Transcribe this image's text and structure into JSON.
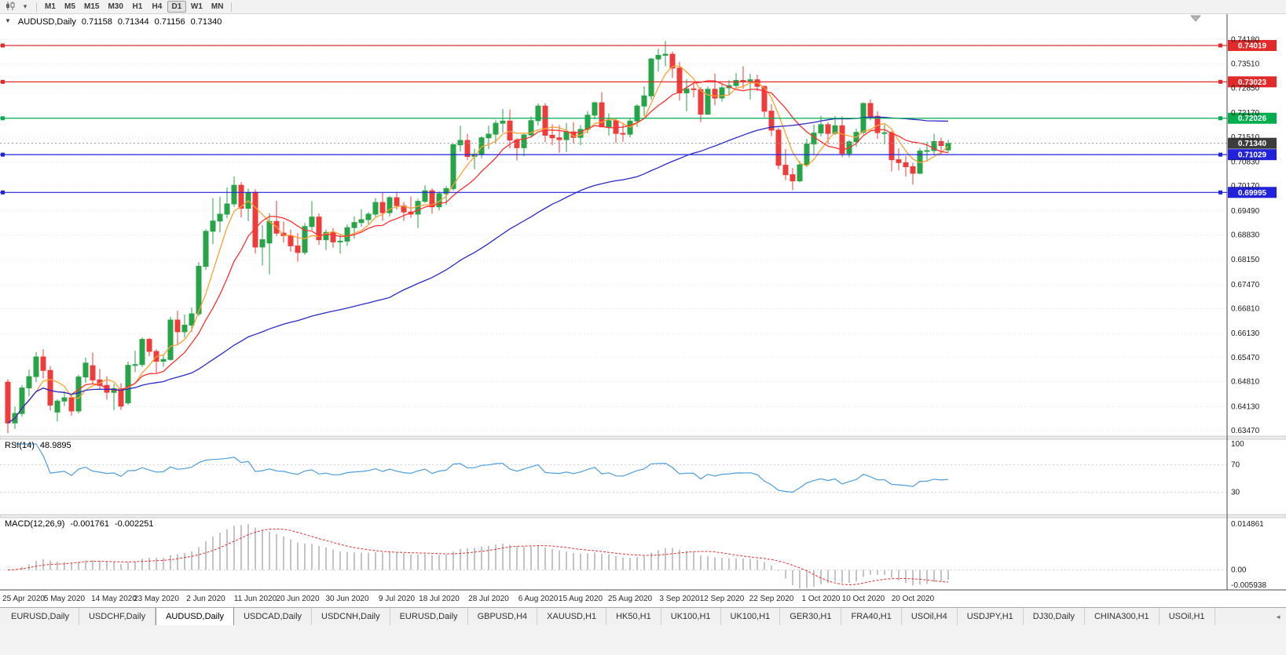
{
  "toolbar": {
    "timeframes": [
      "M1",
      "M5",
      "M15",
      "M30",
      "H1",
      "H4",
      "D1",
      "W1",
      "MN"
    ],
    "active_timeframe": "D1"
  },
  "chart_header": {
    "collapse_icon": "▼",
    "title": "AUDUSD,Daily",
    "open": "0.71158",
    "high": "0.71344",
    "low": "0.71156",
    "close": "0.71340"
  },
  "indicators": {
    "rsi_label": "RSI(14)",
    "rsi_value": "48.9895",
    "macd_label": "MACD(12,26,9)",
    "macd_value1": "-0.001761",
    "macd_value2": "-0.002251"
  },
  "axes": {
    "price_ticks": [
      "0.74180",
      "0.73510",
      "0.72850",
      "0.72170",
      "0.71510",
      "0.70830",
      "0.70170",
      "0.69490",
      "0.68830",
      "0.68150",
      "0.67470",
      "0.66810",
      "0.66130",
      "0.65470",
      "0.64810",
      "0.64130",
      "0.63470"
    ],
    "rsi_ticks": [
      {
        "v": 100,
        "t": "100"
      },
      {
        "v": 70,
        "t": "70"
      },
      {
        "v": 30,
        "t": "30"
      }
    ],
    "macd_ticks": [
      {
        "v": 0.014861,
        "t": "0.014861"
      },
      {
        "v": 0,
        "t": "0.00"
      },
      {
        "v": -0.005938,
        "t": "-0.005938"
      }
    ],
    "date_labels": [
      {
        "i": 1,
        "t": "25 Apr 2020"
      },
      {
        "i": 8,
        "t": "5 May 2020"
      },
      {
        "i": 15,
        "t": "14 May 2020"
      },
      {
        "i": 21,
        "t": "23 May 2020"
      },
      {
        "i": 28,
        "t": "2 Jun 2020"
      },
      {
        "i": 35,
        "t": "11 Jun 2020"
      },
      {
        "i": 41,
        "t": "20 Jun 2020"
      },
      {
        "i": 48,
        "t": "30 Jun 2020"
      },
      {
        "i": 55,
        "t": "9 Jul 2020"
      },
      {
        "i": 61,
        "t": "18 Jul 2020"
      },
      {
        "i": 68,
        "t": "28 Jul 2020"
      },
      {
        "i": 75,
        "t": "6 Aug 2020"
      },
      {
        "i": 81,
        "t": "15 Aug 2020"
      },
      {
        "i": 88,
        "t": "25 Aug 2020"
      },
      {
        "i": 95,
        "t": "3 Sep 2020"
      },
      {
        "i": 101,
        "t": "12 Sep 2020"
      },
      {
        "i": 108,
        "t": "22 Sep 2020"
      },
      {
        "i": 115,
        "t": "1 Oct 2020"
      },
      {
        "i": 121,
        "t": "10 Oct 2020"
      },
      {
        "i": 128,
        "t": "20 Oct 2020"
      }
    ]
  },
  "levels": {
    "hlines": [
      {
        "price": 0.74019,
        "label": "0.74019",
        "color": "#e22a2a"
      },
      {
        "price": 0.73023,
        "label": "0.73023",
        "color": "#e22a2a"
      },
      {
        "price": 0.72026,
        "label": "0.72026",
        "color": "#00ae4d"
      },
      {
        "price": 0.71029,
        "label": "0.71029",
        "color": "#2222dd"
      },
      {
        "price": 0.69995,
        "label": "0.69995",
        "color": "#2222dd"
      }
    ],
    "current_price": {
      "price": 0.7134,
      "label": "0.71340",
      "color": "#3c3c3c"
    }
  },
  "colors": {
    "up": "#27a348",
    "down": "#ee3b3b",
    "ma_fast": "#ffa033",
    "ma_mid": "#ff3030",
    "ma_slow": "#2a2ac8",
    "rsi": "#4f9ede",
    "macd_hist": "#c4c4c4",
    "macd_signal": "#e03030",
    "grid": "#e7e7e7",
    "level_grid": "#cfcfcf"
  },
  "chart_data": {
    "type": "candlestick",
    "symbol": "AUDUSD",
    "timeframe": "Daily",
    "ylim": [
      0.6332,
      0.7462
    ],
    "overlays": [
      {
        "name": "ma-fast-line",
        "period": 5,
        "color_key": "ma_fast"
      },
      {
        "name": "ma-mid-line",
        "period": 10,
        "color_key": "ma_mid"
      },
      {
        "name": "ma-slow-line",
        "period": 55,
        "color_key": "ma_slow"
      }
    ],
    "ohlc": [
      [
        0.648,
        0.6488,
        0.634,
        0.6368
      ],
      [
        0.6368,
        0.6413,
        0.6352,
        0.6394
      ],
      [
        0.6394,
        0.6472,
        0.6385,
        0.6464
      ],
      [
        0.6464,
        0.6514,
        0.6441,
        0.6495
      ],
      [
        0.6495,
        0.6562,
        0.648,
        0.6549
      ],
      [
        0.6549,
        0.657,
        0.649,
        0.6512
      ],
      [
        0.6512,
        0.6524,
        0.6402,
        0.6417
      ],
      [
        0.6398,
        0.6433,
        0.6372,
        0.6428
      ],
      [
        0.6428,
        0.6454,
        0.6414,
        0.6437
      ],
      [
        0.6437,
        0.6448,
        0.6388,
        0.6401
      ],
      [
        0.6401,
        0.65,
        0.6394,
        0.6494
      ],
      [
        0.6494,
        0.6547,
        0.6478,
        0.6532
      ],
      [
        0.6525,
        0.6561,
        0.6475,
        0.6486
      ],
      [
        0.6486,
        0.6516,
        0.6459,
        0.6471
      ],
      [
        0.6471,
        0.6496,
        0.6432,
        0.6452
      ],
      [
        0.6452,
        0.6475,
        0.6403,
        0.6462
      ],
      [
        0.6462,
        0.6477,
        0.6404,
        0.6414
      ],
      [
        0.6423,
        0.6536,
        0.6417,
        0.6526
      ],
      [
        0.6526,
        0.6566,
        0.6507,
        0.6528
      ],
      [
        0.6528,
        0.6602,
        0.6521,
        0.6597
      ],
      [
        0.6597,
        0.6601,
        0.6551,
        0.6564
      ],
      [
        0.6564,
        0.657,
        0.6506,
        0.6537
      ],
      [
        0.6537,
        0.6557,
        0.6522,
        0.6542
      ],
      [
        0.6542,
        0.6659,
        0.6539,
        0.665
      ],
      [
        0.665,
        0.6676,
        0.6583,
        0.6618
      ],
      [
        0.6618,
        0.6665,
        0.6602,
        0.6636
      ],
      [
        0.6636,
        0.6684,
        0.6618,
        0.6667
      ],
      [
        0.6667,
        0.6808,
        0.6661,
        0.6797
      ],
      [
        0.6797,
        0.6899,
        0.6787,
        0.6893
      ],
      [
        0.6893,
        0.6984,
        0.6858,
        0.6921
      ],
      [
        0.6921,
        0.6988,
        0.689,
        0.694
      ],
      [
        0.694,
        0.7013,
        0.6929,
        0.6968
      ],
      [
        0.6968,
        0.7043,
        0.696,
        0.7019
      ],
      [
        0.7019,
        0.7028,
        0.6931,
        0.6956
      ],
      [
        0.6956,
        0.701,
        0.6921,
        0.7
      ],
      [
        0.7,
        0.7008,
        0.6832,
        0.685
      ],
      [
        0.685,
        0.691,
        0.6799,
        0.687
      ],
      [
        0.6861,
        0.6943,
        0.6775,
        0.692
      ],
      [
        0.692,
        0.6977,
        0.688,
        0.6888
      ],
      [
        0.6888,
        0.692,
        0.6862,
        0.6881
      ],
      [
        0.6881,
        0.6898,
        0.6837,
        0.6853
      ],
      [
        0.6853,
        0.6888,
        0.681,
        0.6835
      ],
      [
        0.6835,
        0.6916,
        0.6829,
        0.6906
      ],
      [
        0.6906,
        0.6976,
        0.6896,
        0.6932
      ],
      [
        0.6932,
        0.6942,
        0.6856,
        0.687
      ],
      [
        0.687,
        0.6898,
        0.6842,
        0.689
      ],
      [
        0.689,
        0.6902,
        0.6848,
        0.6864
      ],
      [
        0.6864,
        0.6886,
        0.6832,
        0.6866
      ],
      [
        0.6866,
        0.6912,
        0.6853,
        0.6903
      ],
      [
        0.6903,
        0.6934,
        0.6873,
        0.6917
      ],
      [
        0.6917,
        0.6954,
        0.6905,
        0.6925
      ],
      [
        0.6925,
        0.6946,
        0.6912,
        0.694
      ],
      [
        0.694,
        0.6984,
        0.6931,
        0.6972
      ],
      [
        0.6972,
        0.6998,
        0.6922,
        0.6944
      ],
      [
        0.6944,
        0.699,
        0.6933,
        0.6985
      ],
      [
        0.6985,
        0.7001,
        0.6952,
        0.6963
      ],
      [
        0.6963,
        0.6973,
        0.6921,
        0.6946
      ],
      [
        0.6946,
        0.6988,
        0.693,
        0.694
      ],
      [
        0.694,
        0.6982,
        0.6902,
        0.6975
      ],
      [
        0.6975,
        0.7019,
        0.6971,
        0.7004
      ],
      [
        0.7004,
        0.7011,
        0.6941,
        0.696
      ],
      [
        0.696,
        0.7002,
        0.695,
        0.6996
      ],
      [
        0.6996,
        0.7017,
        0.6965,
        0.701
      ],
      [
        0.701,
        0.7133,
        0.7004,
        0.713
      ],
      [
        0.713,
        0.7182,
        0.7111,
        0.7142
      ],
      [
        0.7142,
        0.716,
        0.7088,
        0.7098
      ],
      [
        0.7098,
        0.7119,
        0.7063,
        0.7104
      ],
      [
        0.7104,
        0.7153,
        0.7093,
        0.7149
      ],
      [
        0.7149,
        0.7182,
        0.7118,
        0.7159
      ],
      [
        0.7159,
        0.7197,
        0.7135,
        0.7189
      ],
      [
        0.7189,
        0.7228,
        0.7163,
        0.7195
      ],
      [
        0.7195,
        0.7227,
        0.712,
        0.7143
      ],
      [
        0.7143,
        0.7149,
        0.7087,
        0.7122
      ],
      [
        0.7122,
        0.7162,
        0.7099,
        0.7157
      ],
      [
        0.7157,
        0.7208,
        0.7149,
        0.7196
      ],
      [
        0.7196,
        0.7243,
        0.7182,
        0.7236
      ],
      [
        0.7236,
        0.7244,
        0.7137,
        0.7156
      ],
      [
        0.7156,
        0.7186,
        0.7129,
        0.7149
      ],
      [
        0.7149,
        0.7184,
        0.7108,
        0.7144
      ],
      [
        0.7144,
        0.719,
        0.711,
        0.7165
      ],
      [
        0.7165,
        0.7192,
        0.7133,
        0.715
      ],
      [
        0.715,
        0.7184,
        0.7129,
        0.7172
      ],
      [
        0.7172,
        0.7222,
        0.7161,
        0.7211
      ],
      [
        0.7211,
        0.7248,
        0.72,
        0.7245
      ],
      [
        0.7245,
        0.7274,
        0.7177,
        0.7179
      ],
      [
        0.7179,
        0.7216,
        0.7155,
        0.7196
      ],
      [
        0.7196,
        0.7201,
        0.7135,
        0.7161
      ],
      [
        0.7161,
        0.7186,
        0.7138,
        0.7159
      ],
      [
        0.7159,
        0.7203,
        0.715,
        0.7195
      ],
      [
        0.7195,
        0.7241,
        0.7179,
        0.7236
      ],
      [
        0.7236,
        0.729,
        0.7209,
        0.7264
      ],
      [
        0.7264,
        0.7368,
        0.7253,
        0.7365
      ],
      [
        0.7365,
        0.7393,
        0.733,
        0.7375
      ],
      [
        0.7375,
        0.7414,
        0.7345,
        0.7378
      ],
      [
        0.7378,
        0.7385,
        0.7313,
        0.734
      ],
      [
        0.734,
        0.7357,
        0.7251,
        0.7272
      ],
      [
        0.7272,
        0.731,
        0.7222,
        0.7283
      ],
      [
        0.7283,
        0.7299,
        0.726,
        0.7281
      ],
      [
        0.7281,
        0.7288,
        0.7192,
        0.7214
      ],
      [
        0.7214,
        0.729,
        0.7211,
        0.7282
      ],
      [
        0.7282,
        0.7325,
        0.7238,
        0.7258
      ],
      [
        0.7258,
        0.7295,
        0.7248,
        0.7286
      ],
      [
        0.7286,
        0.7307,
        0.7265,
        0.7292
      ],
      [
        0.7292,
        0.7326,
        0.7285,
        0.7306
      ],
      [
        0.7306,
        0.7345,
        0.7283,
        0.7305
      ],
      [
        0.7305,
        0.7324,
        0.7254,
        0.7308
      ],
      [
        0.7308,
        0.7322,
        0.7277,
        0.729
      ],
      [
        0.729,
        0.7292,
        0.7205,
        0.7222
      ],
      [
        0.7222,
        0.7241,
        0.7153,
        0.717
      ],
      [
        0.717,
        0.7176,
        0.7063,
        0.7074
      ],
      [
        0.7074,
        0.7118,
        0.7033,
        0.7048
      ],
      [
        0.7048,
        0.7066,
        0.7006,
        0.7031
      ],
      [
        0.7031,
        0.7085,
        0.7027,
        0.7075
      ],
      [
        0.7075,
        0.7146,
        0.7069,
        0.7132
      ],
      [
        0.7132,
        0.7185,
        0.7102,
        0.7162
      ],
      [
        0.7162,
        0.7209,
        0.7153,
        0.7185
      ],
      [
        0.7185,
        0.7192,
        0.7131,
        0.7161
      ],
      [
        0.7161,
        0.7209,
        0.7157,
        0.7182
      ],
      [
        0.7182,
        0.7208,
        0.7096,
        0.7106
      ],
      [
        0.7106,
        0.7143,
        0.7095,
        0.7138
      ],
      [
        0.7138,
        0.7174,
        0.7124,
        0.7164
      ],
      [
        0.7164,
        0.7246,
        0.7158,
        0.7243
      ],
      [
        0.7243,
        0.7254,
        0.7197,
        0.7208
      ],
      [
        0.7208,
        0.7222,
        0.7146,
        0.7163
      ],
      [
        0.7163,
        0.7185,
        0.7131,
        0.7163
      ],
      [
        0.7163,
        0.7168,
        0.7057,
        0.7089
      ],
      [
        0.7089,
        0.712,
        0.706,
        0.7081
      ],
      [
        0.7081,
        0.7099,
        0.7043,
        0.707
      ],
      [
        0.707,
        0.708,
        0.7021,
        0.7052
      ],
      [
        0.7052,
        0.7121,
        0.7049,
        0.7113
      ],
      [
        0.7113,
        0.7138,
        0.7084,
        0.7114
      ],
      [
        0.7114,
        0.716,
        0.7103,
        0.7139
      ],
      [
        0.7139,
        0.715,
        0.7103,
        0.7128
      ],
      [
        0.7116,
        0.7144,
        0.711,
        0.7134
      ]
    ]
  },
  "tabs": {
    "active_index": 2,
    "items": [
      {
        "label": "EURUSD,Daily"
      },
      {
        "label": "USDCHF,Daily"
      },
      {
        "label": "AUDUSD,Daily"
      },
      {
        "label": "USDCAD,Daily"
      },
      {
        "label": "USDCNH,Daily"
      },
      {
        "label": "EURUSD,Daily"
      },
      {
        "label": "GBPUSD,H4"
      },
      {
        "label": "XAUUSD,H1"
      },
      {
        "label": "HK50,H1"
      },
      {
        "label": "UK100,H1"
      },
      {
        "label": "UK100,H1"
      },
      {
        "label": "GER30,H1"
      },
      {
        "label": "FRA40,H1"
      },
      {
        "label": "USOil,H4"
      },
      {
        "label": "USDJPY,H1"
      },
      {
        "label": "DJ30,Daily"
      },
      {
        "label": "CHINA300,H1"
      },
      {
        "label": "USOil,H1"
      }
    ],
    "scroll_arrow": "◄"
  }
}
